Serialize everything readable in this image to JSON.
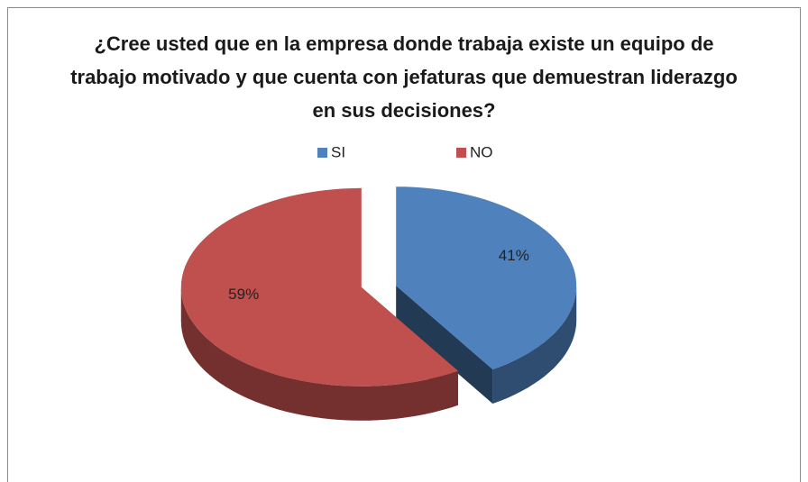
{
  "chart_data": {
    "type": "pie3d",
    "title": "¿Cree usted que en la empresa donde trabaja existe un equipo de trabajo motivado y que cuenta con jefaturas que demuestran liderazgo en sus decisiones?",
    "categories": [
      "SI",
      "NO"
    ],
    "values": [
      41,
      59
    ],
    "value_labels": [
      "41%",
      "59%"
    ],
    "colors": [
      "#4f81bd",
      "#c0504d"
    ],
    "legend": "top"
  }
}
